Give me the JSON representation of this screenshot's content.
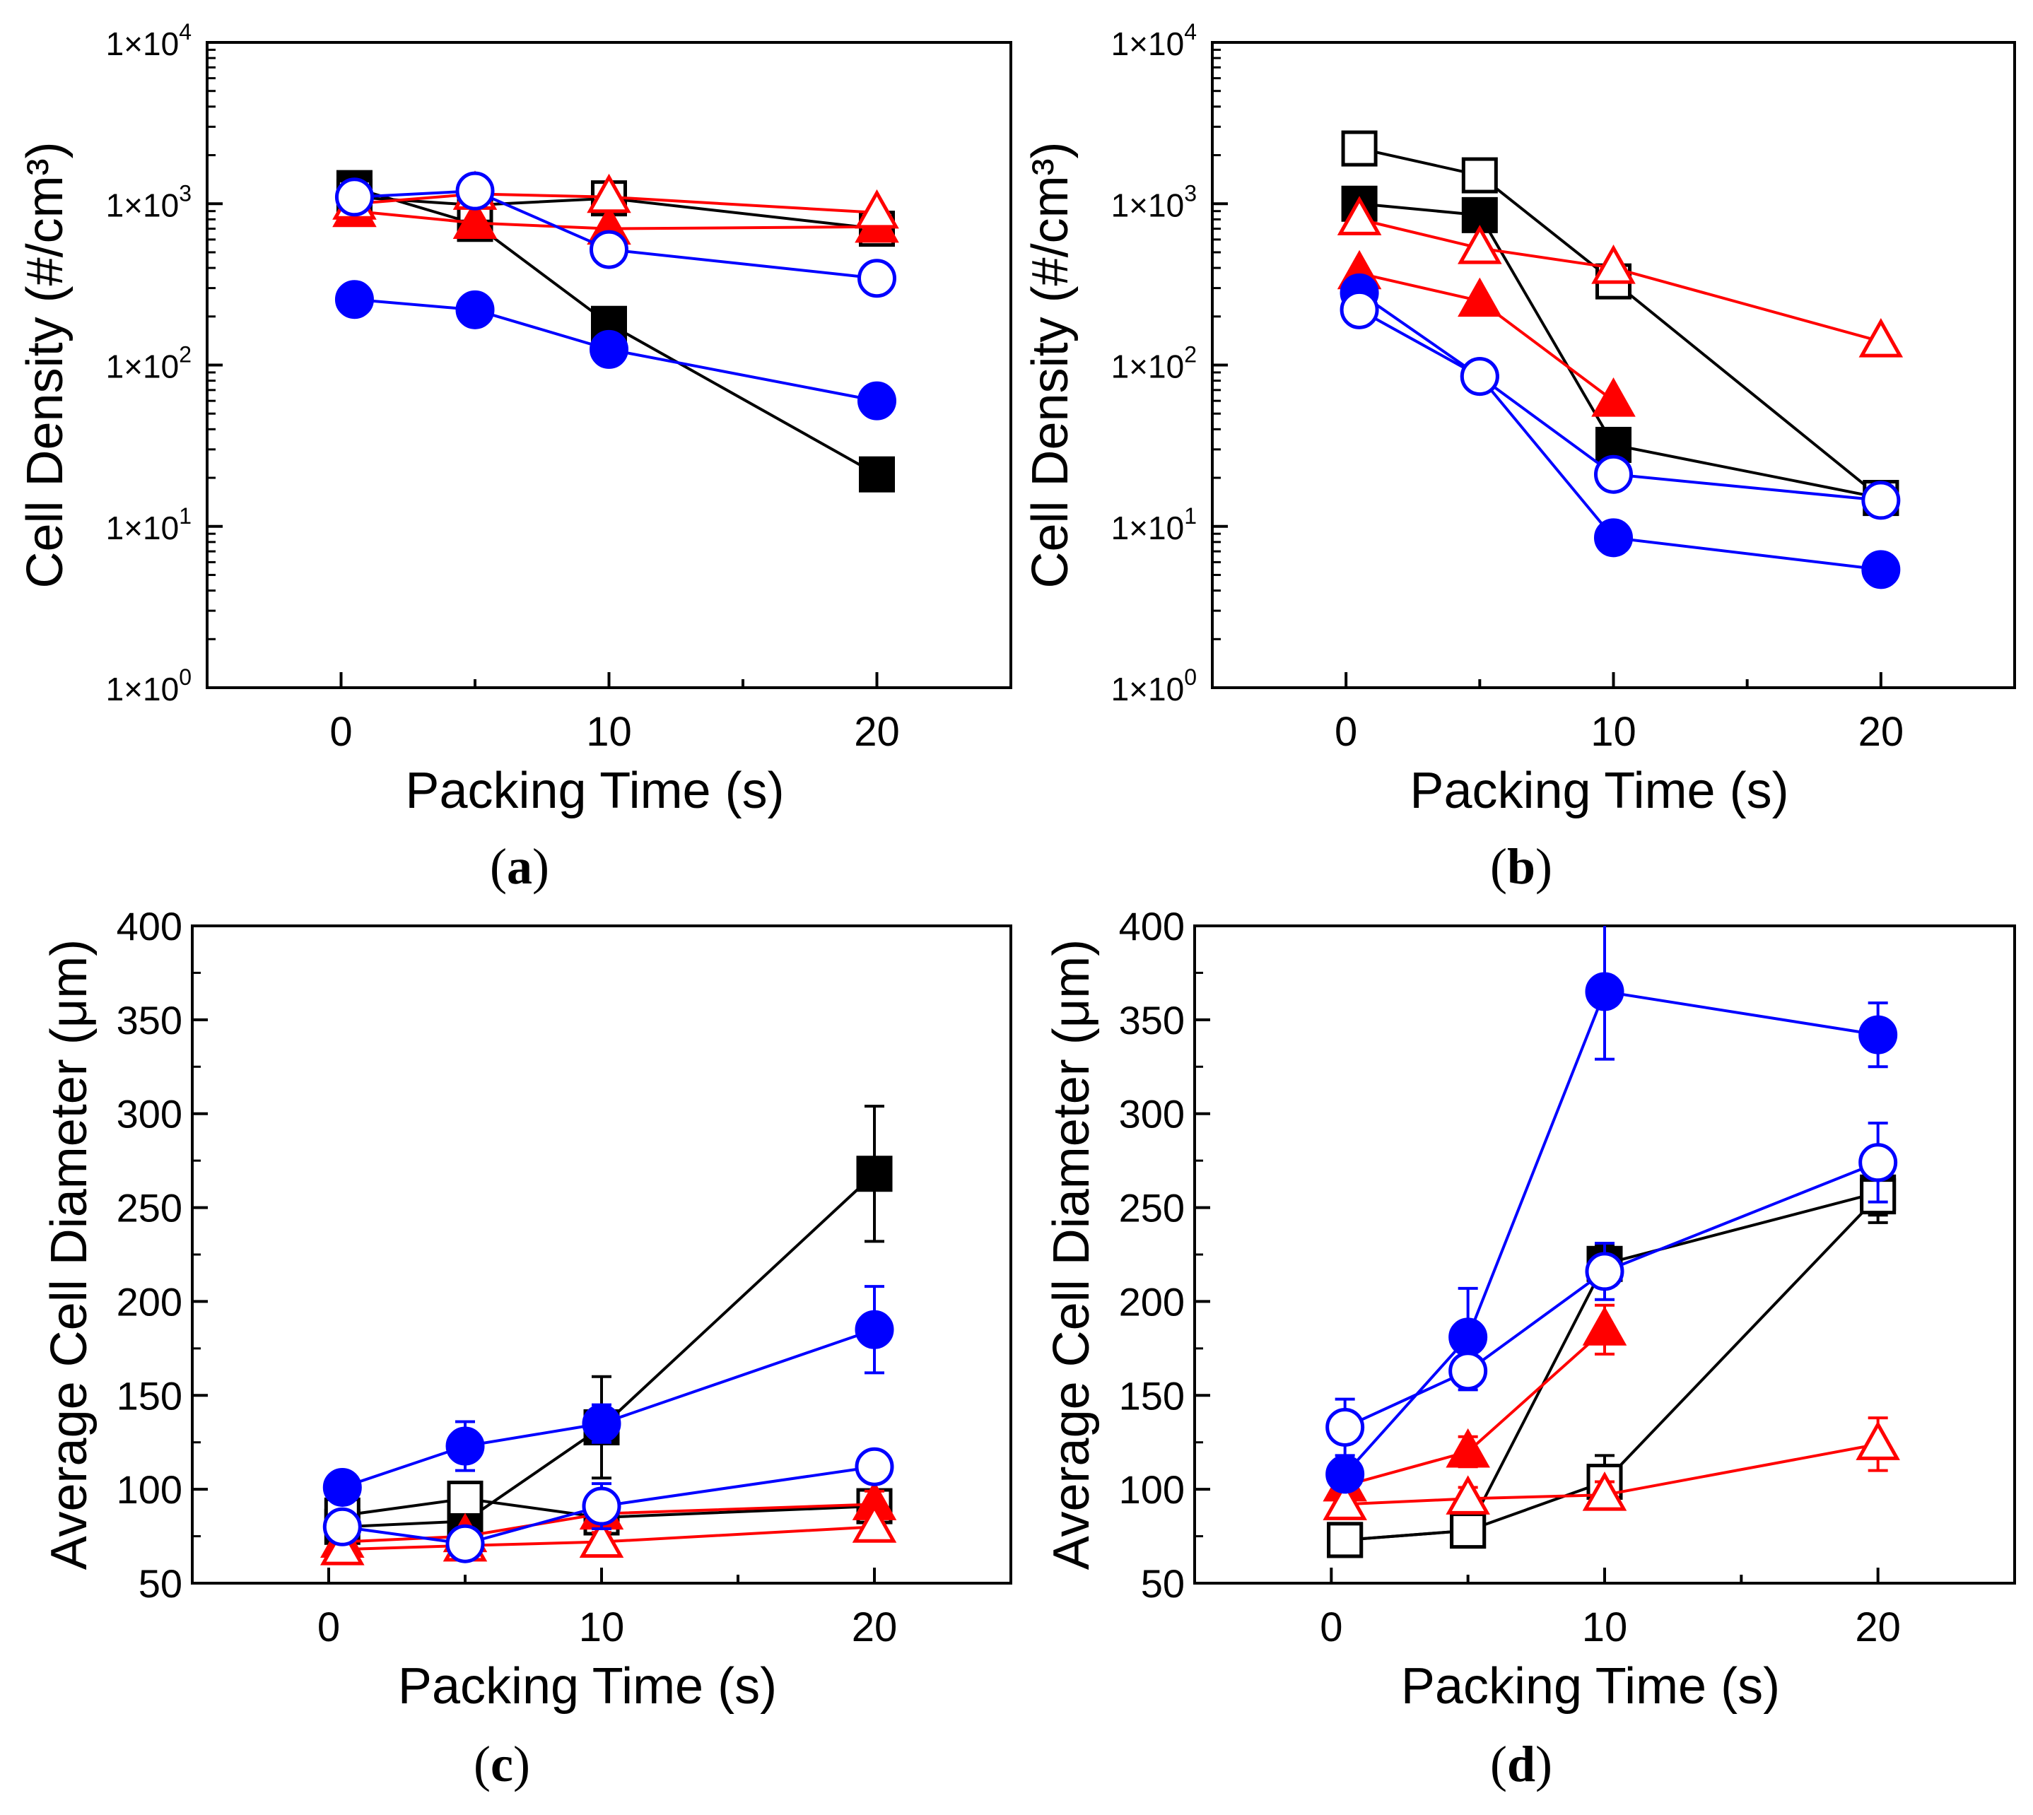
{
  "colors": {
    "black": "#000000",
    "red": "#ff0000",
    "blue": "#0000ff"
  },
  "chart_data": [
    {
      "panel": "(a)",
      "panel_letter": "a",
      "type": "scatter",
      "xlabel": "Packing Time (s)",
      "ylabel": "Cell Density (#/cm³)",
      "yscale": "log",
      "xlim": [
        -5,
        25
      ],
      "ylim": [
        1,
        10000
      ],
      "xticks": [
        0,
        10,
        20
      ],
      "yticks": [
        {
          "value": 1,
          "mant": "1×10",
          "exp": "0"
        },
        {
          "value": 10,
          "mant": "1×10",
          "exp": "1"
        },
        {
          "value": 100,
          "mant": "1×10",
          "exp": "2"
        },
        {
          "value": 1000,
          "mant": "1×10",
          "exp": "3"
        },
        {
          "value": 10000,
          "mant": "1×10",
          "exp": "4"
        }
      ],
      "series": [
        {
          "name": "black-filled-square",
          "marker": "square",
          "filled": true,
          "color": "#000000",
          "x": [
            0.5,
            5,
            10,
            20
          ],
          "y": [
            1250,
            750,
            180,
            21
          ]
        },
        {
          "name": "black-open-square",
          "marker": "square",
          "filled": false,
          "color": "#000000",
          "x": [
            0.5,
            5,
            10,
            20
          ],
          "y": [
            1100,
            980,
            1080,
            700
          ]
        },
        {
          "name": "red-filled-triangle",
          "marker": "triangle",
          "filled": true,
          "color": "#ff0000",
          "x": [
            0.5,
            5,
            10,
            20
          ],
          "y": [
            900,
            760,
            700,
            720
          ]
        },
        {
          "name": "red-open-triangle",
          "marker": "triangle",
          "filled": false,
          "color": "#ff0000",
          "x": [
            0.5,
            5,
            10,
            20
          ],
          "y": [
            1000,
            1150,
            1100,
            880
          ]
        },
        {
          "name": "blue-filled-circle",
          "marker": "circle",
          "filled": true,
          "color": "#0000ff",
          "x": [
            0.5,
            5,
            10,
            20
          ],
          "y": [
            255,
            220,
            125,
            60
          ]
        },
        {
          "name": "blue-open-circle",
          "marker": "circle",
          "filled": false,
          "color": "#0000ff",
          "x": [
            0.5,
            5,
            10,
            20
          ],
          "y": [
            1100,
            1200,
            520,
            345
          ]
        }
      ]
    },
    {
      "panel": "(b)",
      "panel_letter": "b",
      "type": "scatter",
      "xlabel": "Packing Time (s)",
      "ylabel": "Cell Density (#/cm³)",
      "yscale": "log",
      "xlim": [
        -5,
        25
      ],
      "ylim": [
        1,
        10000
      ],
      "xticks": [
        0,
        10,
        20
      ],
      "yticks": [
        {
          "value": 1,
          "mant": "1×10",
          "exp": "0"
        },
        {
          "value": 10,
          "mant": "1×10",
          "exp": "1"
        },
        {
          "value": 100,
          "mant": "1×10",
          "exp": "2"
        },
        {
          "value": 1000,
          "mant": "1×10",
          "exp": "3"
        },
        {
          "value": 10000,
          "mant": "1×10",
          "exp": "4"
        }
      ],
      "series": [
        {
          "name": "black-filled-square",
          "marker": "square",
          "filled": true,
          "color": "#000000",
          "x": [
            0.5,
            5,
            10,
            20
          ],
          "y": [
            1000,
            850,
            32,
            15
          ]
        },
        {
          "name": "black-open-square",
          "marker": "square",
          "filled": false,
          "color": "#000000",
          "x": [
            0.5,
            5,
            10,
            20
          ],
          "y": [
            2200,
            1500,
            330,
            15
          ]
        },
        {
          "name": "red-filled-triangle",
          "marker": "triangle",
          "filled": true,
          "color": "#ff0000",
          "x": [
            0.5,
            5,
            10
          ],
          "y": [
            370,
            250,
            60
          ]
        },
        {
          "name": "red-open-triangle",
          "marker": "triangle",
          "filled": false,
          "color": "#ff0000",
          "x": [
            0.5,
            5,
            10,
            20
          ],
          "y": [
            800,
            530,
            400,
            140
          ]
        },
        {
          "name": "blue-filled-circle",
          "marker": "circle",
          "filled": true,
          "color": "#0000ff",
          "x": [
            0.5,
            5,
            10,
            20
          ],
          "y": [
            280,
            85,
            8.5,
            5.4
          ]
        },
        {
          "name": "blue-open-circle",
          "marker": "circle",
          "filled": false,
          "color": "#0000ff",
          "x": [
            0.5,
            5,
            10,
            20
          ],
          "y": [
            220,
            85,
            21,
            14.5
          ]
        }
      ]
    },
    {
      "panel": "(c)",
      "panel_letter": "c",
      "type": "scatter",
      "xlabel": "Packing Time (s)",
      "ylabel": "Average Cell Diameter (μm)",
      "yscale": "linear",
      "xlim": [
        -5,
        25
      ],
      "ylim": [
        50,
        400
      ],
      "xticks": [
        0,
        10,
        20
      ],
      "yticks": [
        {
          "value": 50,
          "label": "50"
        },
        {
          "value": 100,
          "label": "100"
        },
        {
          "value": 150,
          "label": "150"
        },
        {
          "value": 200,
          "label": "200"
        },
        {
          "value": 250,
          "label": "250"
        },
        {
          "value": 300,
          "label": "300"
        },
        {
          "value": 350,
          "label": "350"
        },
        {
          "value": 400,
          "label": "400"
        }
      ],
      "series": [
        {
          "name": "black-filled-square",
          "marker": "square",
          "filled": true,
          "color": "#000000",
          "x": [
            0.5,
            5,
            10,
            20
          ],
          "y": [
            80,
            83,
            133,
            268
          ],
          "err": [
            5,
            6,
            27,
            36
          ]
        },
        {
          "name": "black-open-square",
          "marker": "square",
          "filled": false,
          "color": "#000000",
          "x": [
            0.5,
            5,
            10,
            20
          ],
          "y": [
            86,
            95,
            85,
            91
          ],
          "err": [
            7,
            8,
            6,
            6
          ]
        },
        {
          "name": "red-filled-triangle",
          "marker": "triangle",
          "filled": true,
          "color": "#ff0000",
          "x": [
            0.5,
            5,
            10,
            20
          ],
          "y": [
            72,
            75,
            87,
            92
          ],
          "err": [
            4,
            4,
            5,
            7
          ]
        },
        {
          "name": "red-open-triangle",
          "marker": "triangle",
          "filled": false,
          "color": "#ff0000",
          "x": [
            0.5,
            5,
            10,
            20
          ],
          "y": [
            68,
            70,
            72,
            80
          ],
          "err": [
            3,
            4,
            5,
            6
          ]
        },
        {
          "name": "blue-filled-circle",
          "marker": "circle",
          "filled": true,
          "color": "#0000ff",
          "x": [
            0.5,
            5,
            10,
            20
          ],
          "y": [
            101,
            123,
            135,
            185
          ],
          "err": [
            6,
            13,
            10,
            23
          ]
        },
        {
          "name": "blue-open-circle",
          "marker": "circle",
          "filled": false,
          "color": "#0000ff",
          "x": [
            0.5,
            5,
            10,
            20
          ],
          "y": [
            80,
            71,
            91,
            112
          ],
          "err": [
            6,
            5,
            12,
            6
          ]
        }
      ]
    },
    {
      "panel": "(d)",
      "panel_letter": "d",
      "type": "scatter",
      "xlabel": "Packing Time (s)",
      "ylabel": "Average Cell Diameter (μm)",
      "yscale": "linear",
      "xlim": [
        -5,
        25
      ],
      "ylim": [
        50,
        400
      ],
      "xticks": [
        0,
        10,
        20
      ],
      "yticks": [
        {
          "value": 50,
          "label": "50"
        },
        {
          "value": 100,
          "label": "100"
        },
        {
          "value": 150,
          "label": "150"
        },
        {
          "value": 200,
          "label": "200"
        },
        {
          "value": 250,
          "label": "250"
        },
        {
          "value": 300,
          "label": "300"
        },
        {
          "value": 350,
          "label": "350"
        },
        {
          "value": 400,
          "label": "400"
        }
      ],
      "series": [
        {
          "name": "black-filled-square",
          "marker": "square",
          "filled": true,
          "color": "#000000",
          "x": [
            0.5,
            5,
            10,
            20
          ],
          "y": [
            73,
            78,
            220,
            258
          ],
          "err": [
            5,
            5,
            10,
            12
          ]
        },
        {
          "name": "black-open-square",
          "marker": "square",
          "filled": false,
          "color": "#000000",
          "x": [
            0.5,
            5,
            10,
            20
          ],
          "y": [
            73,
            78,
            104,
            256
          ],
          "err": [
            6,
            6,
            14,
            14
          ]
        },
        {
          "name": "red-filled-triangle",
          "marker": "triangle",
          "filled": true,
          "color": "#ff0000",
          "x": [
            0.5,
            5,
            10
          ],
          "y": [
            102,
            120,
            185
          ],
          "err": [
            6,
            8,
            13
          ]
        },
        {
          "name": "red-open-triangle",
          "marker": "triangle",
          "filled": false,
          "color": "#ff0000",
          "x": [
            0.5,
            5,
            10,
            20
          ],
          "y": [
            92,
            95,
            97,
            124
          ],
          "err": [
            6,
            6,
            7,
            14
          ]
        },
        {
          "name": "blue-filled-circle",
          "marker": "circle",
          "filled": true,
          "color": "#0000ff",
          "x": [
            0.5,
            5,
            10,
            20
          ],
          "y": [
            108,
            181,
            365,
            342
          ],
          "err": [
            8,
            26,
            36,
            17
          ]
        },
        {
          "name": "blue-open-circle",
          "marker": "circle",
          "filled": false,
          "color": "#0000ff",
          "x": [
            0.5,
            5,
            10,
            20
          ],
          "y": [
            133,
            163,
            216,
            274
          ],
          "err": [
            15,
            10,
            15,
            21
          ]
        }
      ]
    }
  ]
}
